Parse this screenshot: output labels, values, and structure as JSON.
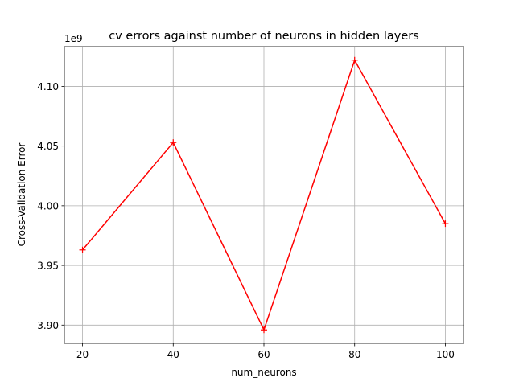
{
  "chart_data": {
    "type": "line",
    "title": "cv errors against number of neurons in hidden layers",
    "xlabel": "num_neurons",
    "ylabel": "Cross-Validation Error",
    "y_offset_label": "1e9",
    "x": [
      20,
      40,
      60,
      80,
      100
    ],
    "series": [
      {
        "values": [
          3.963,
          4.053,
          3.896,
          4.122,
          3.985
        ],
        "color": "#ff0000",
        "marker": "plus"
      }
    ],
    "x_ticks": [
      20,
      40,
      60,
      80,
      100
    ],
    "x_tick_labels": [
      "20",
      "40",
      "60",
      "80",
      "100"
    ],
    "y_ticks": [
      3.9,
      3.95,
      4.0,
      4.05,
      4.1
    ],
    "y_tick_labels": [
      "3.90",
      "3.95",
      "4.00",
      "4.05",
      "4.10"
    ],
    "xlim": [
      16,
      104
    ],
    "ylim": [
      3.8847,
      4.1333
    ],
    "grid": true
  }
}
